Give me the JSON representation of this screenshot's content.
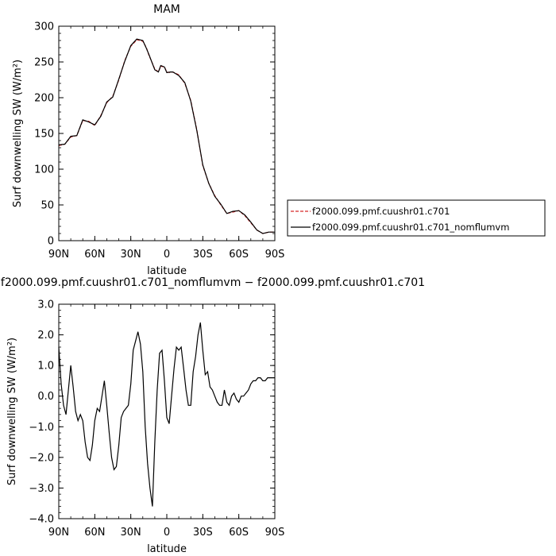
{
  "chart_data": [
    {
      "type": "line",
      "title": "MAM",
      "xlabel": "latitude",
      "ylabel": "Surf downwelling SW (W/m²)",
      "xlim": [
        90,
        -90
      ],
      "ylim": [
        0,
        300
      ],
      "x_ticks": [
        90,
        60,
        30,
        0,
        -30,
        -60,
        -90
      ],
      "x_tick_labels": [
        "90N",
        "60N",
        "30N",
        "0",
        "30S",
        "60S",
        "90S"
      ],
      "y_ticks": [
        0,
        50,
        100,
        150,
        200,
        250,
        300
      ],
      "y_tick_labels": [
        "0",
        "50",
        "100",
        "150",
        "200",
        "250",
        "300"
      ],
      "legend_position": "right",
      "series": [
        {
          "name": "f2000.099.pmf.cuushr01.c701",
          "color": "#d62728",
          "style": "dashed",
          "x": [
            90,
            85,
            80,
            75,
            70,
            65,
            60,
            55,
            50,
            45,
            40,
            35,
            30,
            25,
            20,
            17,
            15,
            10,
            7,
            5,
            2,
            0,
            -3,
            -5,
            -10,
            -15,
            -20,
            -25,
            -30,
            -35,
            -40,
            -45,
            -50,
            -55,
            -60,
            -65,
            -70,
            -75,
            -80,
            -85,
            -90
          ],
          "values": [
            133,
            135,
            145,
            147,
            168,
            167,
            161,
            175,
            193,
            202,
            225,
            252,
            272,
            281,
            279,
            270,
            260,
            240,
            236,
            244,
            243,
            236,
            235,
            236,
            232,
            220,
            196,
            155,
            105,
            80,
            63,
            50,
            38,
            40,
            42,
            35,
            25,
            15,
            10,
            12,
            12
          ]
        },
        {
          "name": "f2000.099.pmf.cuushr01.c701_nomflumvm",
          "color": "#000000",
          "style": "solid",
          "x": [
            90,
            85,
            80,
            75,
            70,
            65,
            60,
            55,
            50,
            45,
            40,
            35,
            30,
            25,
            20,
            17,
            15,
            10,
            7,
            5,
            2,
            0,
            -3,
            -5,
            -10,
            -15,
            -20,
            -25,
            -30,
            -35,
            -40,
            -45,
            -50,
            -55,
            -60,
            -65,
            -70,
            -75,
            -80,
            -85,
            -90
          ],
          "values": [
            134,
            135,
            146,
            147,
            169,
            166,
            162,
            174,
            194,
            201,
            226,
            251,
            273,
            282,
            280,
            269,
            261,
            239,
            236,
            245,
            243,
            235,
            236,
            236,
            231,
            221,
            195,
            154,
            106,
            80,
            62,
            51,
            38,
            41,
            42,
            36,
            26,
            15,
            10,
            12,
            12
          ]
        }
      ]
    },
    {
      "type": "line",
      "title": "f2000.099.pmf.cuushr01.c701_nomflumvm − f2000.099.pmf.cuushr01.c701",
      "xlabel": "latitude",
      "ylabel": "Surf downwelling SW (W/m²)",
      "xlim": [
        90,
        -90
      ],
      "ylim": [
        -4,
        3
      ],
      "x_ticks": [
        90,
        60,
        30,
        0,
        -30,
        -60,
        -90
      ],
      "x_tick_labels": [
        "90N",
        "60N",
        "30N",
        "0",
        "30S",
        "60S",
        "90S"
      ],
      "y_ticks": [
        -4,
        -3,
        -2,
        -1,
        0,
        1,
        2,
        3
      ],
      "y_tick_labels": [
        "−4.0",
        "−3.0",
        "−2.0",
        "−1.0",
        "0.0",
        "1.0",
        "2.0",
        "3.0"
      ],
      "series": [
        {
          "color": "#000000",
          "style": "solid",
          "x": [
            90,
            88,
            86,
            84,
            82,
            80,
            78,
            76,
            74,
            72,
            70,
            68,
            66,
            64,
            62,
            60,
            58,
            56,
            54,
            52,
            50,
            48,
            46,
            44,
            42,
            40,
            38,
            36,
            34,
            32,
            30,
            28,
            26,
            24,
            22,
            20,
            18,
            16,
            14,
            12,
            10,
            8,
            6,
            4,
            2,
            0,
            -2,
            -4,
            -6,
            -8,
            -10,
            -12,
            -14,
            -16,
            -18,
            -20,
            -22,
            -24,
            -26,
            -28,
            -30,
            -32,
            -34,
            -36,
            -38,
            -40,
            -42,
            -44,
            -46,
            -48,
            -50,
            -52,
            -54,
            -56,
            -58,
            -60,
            -62,
            -64,
            -66,
            -68,
            -70,
            -72,
            -74,
            -76,
            -78,
            -80,
            -82,
            -84,
            -86,
            -88,
            -90
          ],
          "values": [
            1.6,
            0.4,
            -0.3,
            -0.6,
            0.2,
            1.0,
            0.3,
            -0.5,
            -0.8,
            -0.6,
            -0.8,
            -1.5,
            -2.0,
            -2.1,
            -1.6,
            -0.8,
            -0.4,
            -0.5,
            0.0,
            0.5,
            -0.3,
            -1.2,
            -2.0,
            -2.4,
            -2.3,
            -1.6,
            -0.7,
            -0.5,
            -0.4,
            -0.3,
            0.4,
            1.5,
            1.8,
            2.1,
            1.7,
            0.8,
            -1.0,
            -2.2,
            -3.0,
            -3.6,
            -1.5,
            0.2,
            1.4,
            1.5,
            0.5,
            -0.7,
            -0.9,
            0.0,
            0.9,
            1.6,
            1.5,
            1.6,
            0.9,
            0.2,
            -0.3,
            -0.3,
            0.8,
            1.3,
            2.0,
            2.4,
            1.5,
            0.7,
            0.8,
            0.3,
            0.2,
            0.0,
            -0.2,
            -0.3,
            -0.3,
            0.2,
            -0.2,
            -0.3,
            0.0,
            0.1,
            -0.1,
            -0.2,
            0.0,
            0.0,
            0.1,
            0.2,
            0.4,
            0.5,
            0.5,
            0.6,
            0.6,
            0.5,
            0.5,
            0.6,
            0.6,
            0.6,
            0.6
          ]
        }
      ]
    }
  ]
}
